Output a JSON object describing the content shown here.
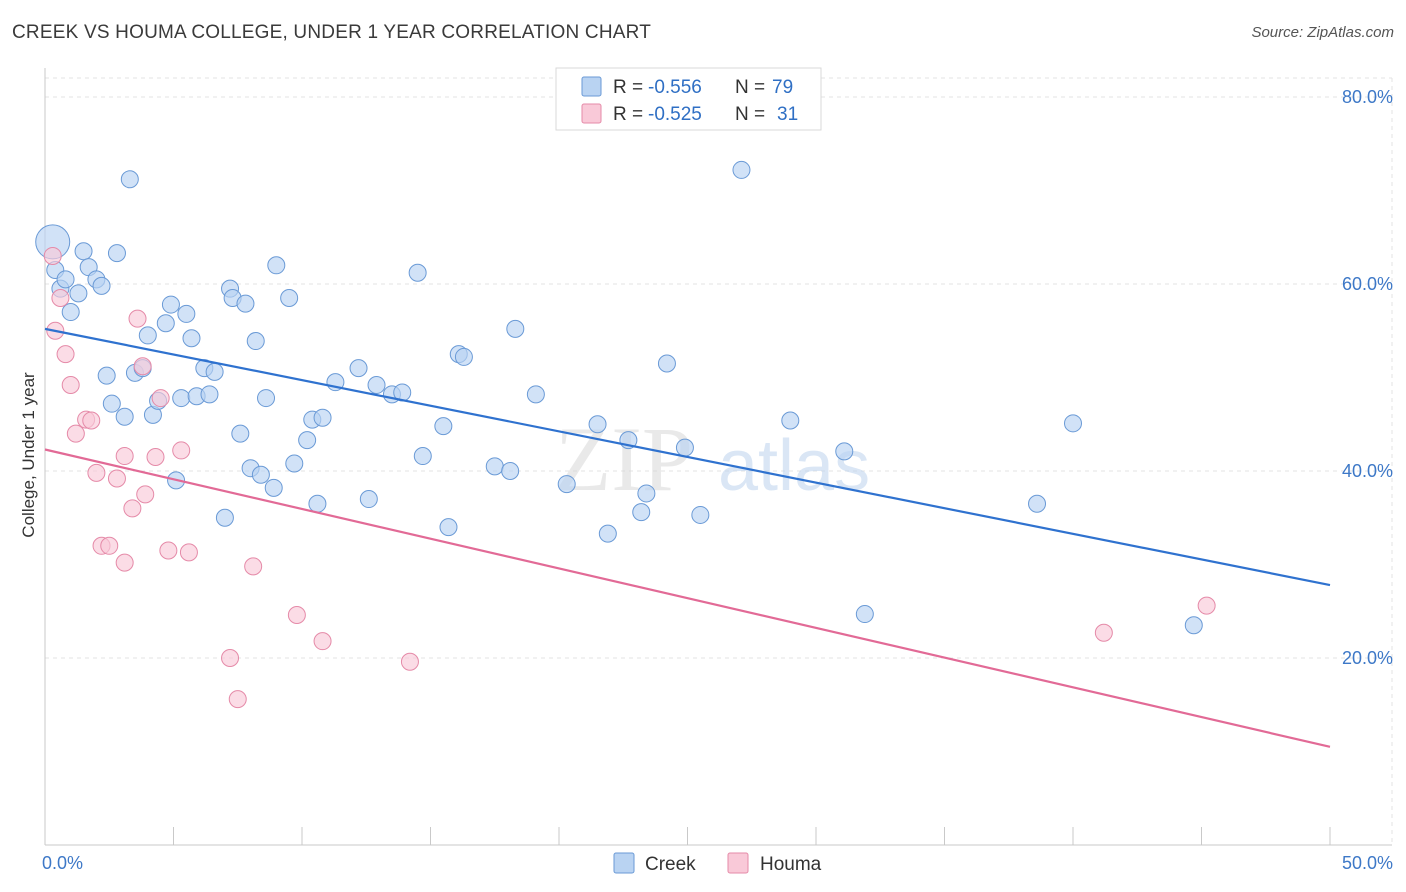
{
  "title": "CREEK VS HOUMA COLLEGE, UNDER 1 YEAR CORRELATION CHART",
  "source": "Source: ZipAtlas.com",
  "watermark": {
    "zip": "ZIP",
    "atlas": "atlas"
  },
  "chart_data": {
    "type": "scatter",
    "ylabel": "College, Under 1 year",
    "xlim": [
      0,
      50
    ],
    "ylim": [
      0,
      85
    ],
    "x_ticks": [
      {
        "value": 0,
        "label": "0.0%"
      },
      {
        "value": 50,
        "label": "50.0%"
      }
    ],
    "y_ticks": [
      {
        "value": 20,
        "label": "20.0%"
      },
      {
        "value": 40,
        "label": "40.0%"
      },
      {
        "value": 60,
        "label": "60.0%"
      },
      {
        "value": 80,
        "label": "80.0%"
      }
    ],
    "grid": true,
    "legend_position": "top-center",
    "legend": [
      {
        "r_label": "R = ",
        "r_value": "-0.556",
        "n_label": "N = ",
        "n_value": "79"
      },
      {
        "r_label": "R = ",
        "r_value": "-0.525",
        "n_label": "N = ",
        "n_value": "31"
      }
    ],
    "series": [
      {
        "name": "Creek",
        "color_fill": "#b9d3f2",
        "color_stroke": "#6a9ad6",
        "line_color": "#2f72cf",
        "trend": {
          "x0": 0,
          "y0": 55.2,
          "x1": 50,
          "y1": 27.8
        },
        "points": [
          [
            0.3,
            64.5
          ],
          [
            0.4,
            61.5
          ],
          [
            0.6,
            59.5
          ],
          [
            0.8,
            60.5
          ],
          [
            1.0,
            57.0
          ],
          [
            1.3,
            59.0
          ],
          [
            1.5,
            63.5
          ],
          [
            1.7,
            61.8
          ],
          [
            2.0,
            60.5
          ],
          [
            2.2,
            59.8
          ],
          [
            2.4,
            50.2
          ],
          [
            2.6,
            47.2
          ],
          [
            2.8,
            63.3
          ],
          [
            3.1,
            45.8
          ],
          [
            3.3,
            71.2
          ],
          [
            3.5,
            50.5
          ],
          [
            3.8,
            51.0
          ],
          [
            4.0,
            54.5
          ],
          [
            4.2,
            46.0
          ],
          [
            4.4,
            47.5
          ],
          [
            4.7,
            55.8
          ],
          [
            4.9,
            57.8
          ],
          [
            5.1,
            39.0
          ],
          [
            5.3,
            47.8
          ],
          [
            5.5,
            56.8
          ],
          [
            5.7,
            54.2
          ],
          [
            5.9,
            48.0
          ],
          [
            6.2,
            51.0
          ],
          [
            6.4,
            48.2
          ],
          [
            6.6,
            50.6
          ],
          [
            7.0,
            35.0
          ],
          [
            7.2,
            59.5
          ],
          [
            7.3,
            58.5
          ],
          [
            7.6,
            44.0
          ],
          [
            7.8,
            57.9
          ],
          [
            8.0,
            40.3
          ],
          [
            8.2,
            53.9
          ],
          [
            8.4,
            39.6
          ],
          [
            8.6,
            47.8
          ],
          [
            8.9,
            38.2
          ],
          [
            9.0,
            62.0
          ],
          [
            9.5,
            58.5
          ],
          [
            9.7,
            40.8
          ],
          [
            10.2,
            43.3
          ],
          [
            10.4,
            45.5
          ],
          [
            10.6,
            36.5
          ],
          [
            10.8,
            45.7
          ],
          [
            11.3,
            49.5
          ],
          [
            12.2,
            51.0
          ],
          [
            12.6,
            37.0
          ],
          [
            12.9,
            49.2
          ],
          [
            13.5,
            48.2
          ],
          [
            13.9,
            48.4
          ],
          [
            14.5,
            61.2
          ],
          [
            14.7,
            41.6
          ],
          [
            15.5,
            44.8
          ],
          [
            15.7,
            34.0
          ],
          [
            16.1,
            52.5
          ],
          [
            16.3,
            52.2
          ],
          [
            17.5,
            40.5
          ],
          [
            18.1,
            40.0
          ],
          [
            18.3,
            55.2
          ],
          [
            19.1,
            48.2
          ],
          [
            20.3,
            38.6
          ],
          [
            21.5,
            45.0
          ],
          [
            21.9,
            33.3
          ],
          [
            22.7,
            43.3
          ],
          [
            23.2,
            35.6
          ],
          [
            23.4,
            37.6
          ],
          [
            24.2,
            51.5
          ],
          [
            24.9,
            42.5
          ],
          [
            25.5,
            35.3
          ],
          [
            27.1,
            72.2
          ],
          [
            29.0,
            45.4
          ],
          [
            31.1,
            42.1
          ],
          [
            31.9,
            24.7
          ],
          [
            38.6,
            36.5
          ],
          [
            40.0,
            45.1
          ],
          [
            44.7,
            23.5
          ]
        ]
      },
      {
        "name": "Houma",
        "color_fill": "#f9c9d8",
        "color_stroke": "#e58aa8",
        "line_color": "#e26a96",
        "trend": {
          "x0": 0,
          "y0": 42.3,
          "x1": 50,
          "y1": 10.5
        },
        "points": [
          [
            0.3,
            63.0
          ],
          [
            0.4,
            55.0
          ],
          [
            0.6,
            58.5
          ],
          [
            0.8,
            52.5
          ],
          [
            1.0,
            49.2
          ],
          [
            1.2,
            44.0
          ],
          [
            1.6,
            45.5
          ],
          [
            1.8,
            45.4
          ],
          [
            2.0,
            39.8
          ],
          [
            2.2,
            32.0
          ],
          [
            2.5,
            32.0
          ],
          [
            2.8,
            39.2
          ],
          [
            3.1,
            41.6
          ],
          [
            3.1,
            30.2
          ],
          [
            3.4,
            36.0
          ],
          [
            3.6,
            56.3
          ],
          [
            3.8,
            51.2
          ],
          [
            3.9,
            37.5
          ],
          [
            4.3,
            41.5
          ],
          [
            4.5,
            47.8
          ],
          [
            4.8,
            31.5
          ],
          [
            5.3,
            42.2
          ],
          [
            5.6,
            31.3
          ],
          [
            7.2,
            20.0
          ],
          [
            7.5,
            15.6
          ],
          [
            8.1,
            29.8
          ],
          [
            9.8,
            24.6
          ],
          [
            10.8,
            21.8
          ],
          [
            14.2,
            19.6
          ],
          [
            41.2,
            22.7
          ],
          [
            45.2,
            25.6
          ]
        ]
      }
    ]
  }
}
